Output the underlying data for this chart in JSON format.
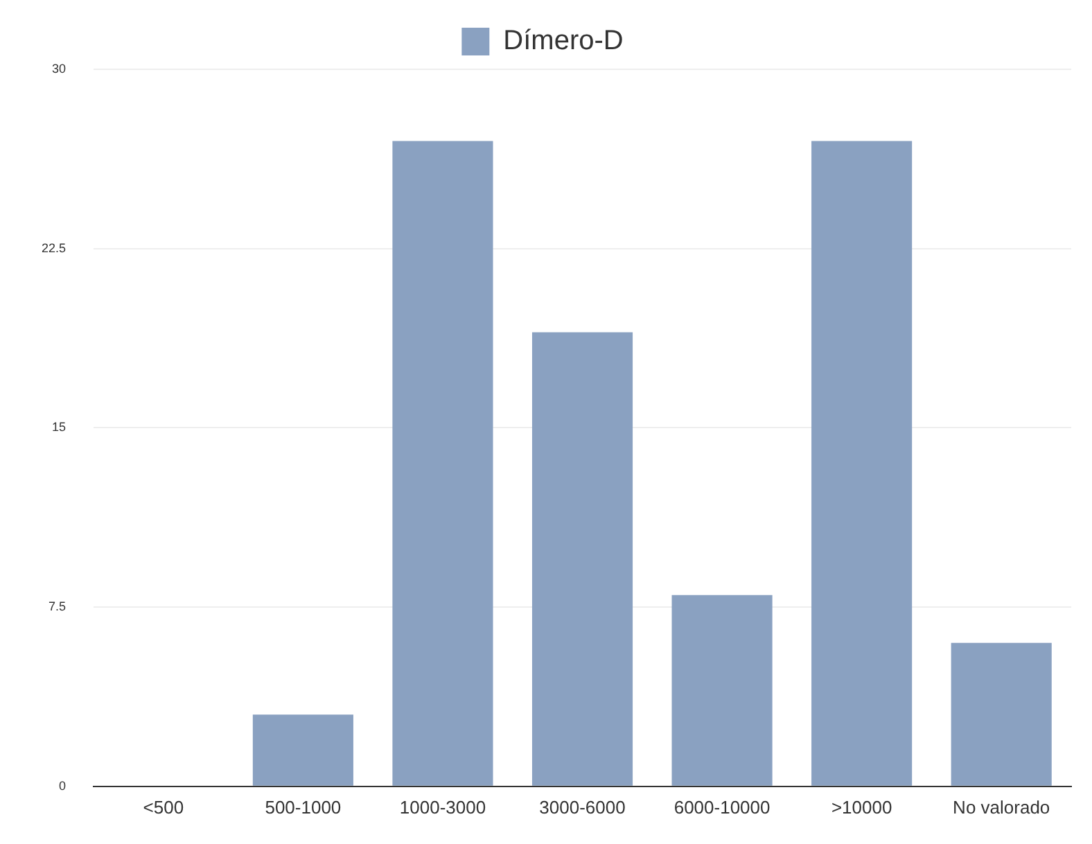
{
  "chart_data": {
    "type": "bar",
    "categories": [
      "<500",
      "500-1000",
      "1000-3000",
      "3000-6000",
      "6000-10000",
      ">10000",
      "No valorado"
    ],
    "series": [
      {
        "name": "Dímero-D",
        "color": "#8aa1c1",
        "values": [
          0,
          3,
          27,
          19,
          8,
          27,
          6
        ]
      }
    ],
    "ylim": [
      0,
      30
    ],
    "yticks": [
      0,
      7.5,
      15,
      22.5,
      30
    ],
    "grid": "y",
    "legend": "top"
  }
}
